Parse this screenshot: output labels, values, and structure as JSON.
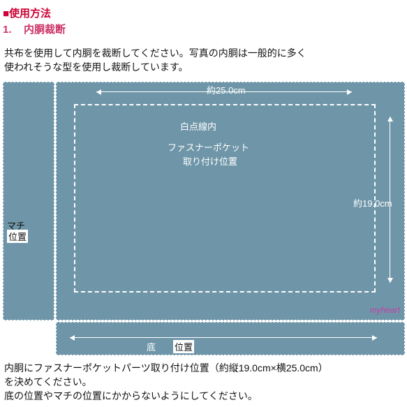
{
  "header": {
    "title": "■使用方法"
  },
  "step": {
    "num": "1.",
    "title": "内胴裁断"
  },
  "intro": {
    "line1": "共布を使用して内胴を裁断してください。写真の内胴は一般的に多く",
    "line2": "使われそうな型を使用し裁断しています。"
  },
  "diagram": {
    "width_label": "約25.0cm",
    "height_label": "約19.0cm",
    "dashline_label": "白点線内",
    "pocket_label_1": "ファスナーポケット",
    "pocket_label_2": "取り付け位置",
    "side_label_1": "マチ",
    "side_label_2": "位置",
    "bottom_label_1": "底",
    "bottom_label_2": "位置",
    "watermark": "myheart",
    "colors": {
      "panel_bg": "#6f96a8",
      "dash": "#ffffff",
      "accent_red": "#cc0033",
      "accent_pink": "#cc3366",
      "text": "#111111",
      "watermark": "#c040aa"
    }
  },
  "footer": {
    "line1": "内胴にファスナーポケットパーツ取り付け位置（約縦19.0cm×横25.0cm）",
    "line2": "を決めてください。",
    "line3": "底の位置やマチの位置にかからないようにしてください。"
  }
}
